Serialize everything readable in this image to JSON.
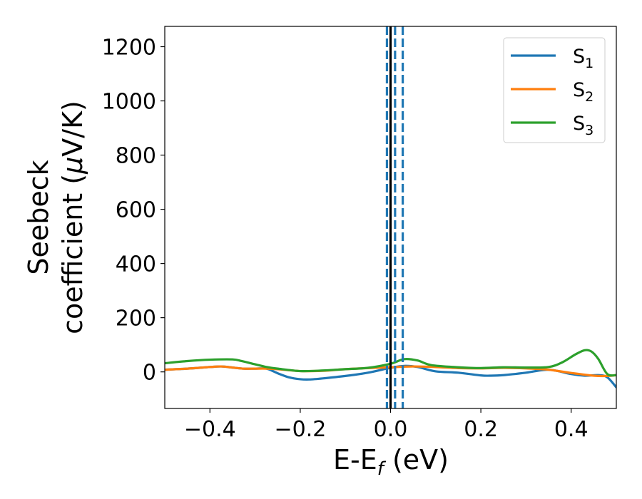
{
  "chart_data": {
    "type": "line",
    "xlabel": {
      "main": "E-E",
      "sub": "f",
      "post": " (eV)"
    },
    "ylabel": {
      "line1": "Seebeck",
      "line2_pre": "coefficient  (",
      "line2_mu": "μ",
      "line2_post": "V/K)"
    },
    "xlim": [
      -0.5,
      0.5
    ],
    "ylim": [
      -135,
      1275
    ],
    "x_ticks": [
      -0.4,
      -0.2,
      0.0,
      0.2,
      0.4
    ],
    "x_tick_labels": [
      "−0.4",
      "−0.2",
      "0.0",
      "0.2",
      "0.4"
    ],
    "y_ticks": [
      0,
      200,
      400,
      600,
      800,
      1000,
      1200
    ],
    "y_tick_labels": [
      "0",
      "200",
      "400",
      "600",
      "800",
      "1000",
      "1200"
    ],
    "grid": false,
    "legend_position": "top-right",
    "series": [
      {
        "name": "S",
        "sub": "1",
        "color": "#1f77b4",
        "points": [
          [
            -0.5,
            8
          ],
          [
            -0.45,
            12
          ],
          [
            -0.4,
            18
          ],
          [
            -0.375,
            20
          ],
          [
            -0.35,
            16
          ],
          [
            -0.325,
            12
          ],
          [
            -0.3,
            12
          ],
          [
            -0.275,
            12
          ],
          [
            -0.25,
            -5
          ],
          [
            -0.225,
            -20
          ],
          [
            -0.2,
            -27
          ],
          [
            -0.18,
            -28
          ],
          [
            -0.15,
            -24
          ],
          [
            -0.1,
            -15
          ],
          [
            -0.05,
            -3
          ],
          [
            0.0,
            15
          ],
          [
            0.03,
            22
          ],
          [
            0.06,
            18
          ],
          [
            0.1,
            2
          ],
          [
            0.15,
            -3
          ],
          [
            0.2,
            -13
          ],
          [
            0.22,
            -14
          ],
          [
            0.25,
            -12
          ],
          [
            0.3,
            -3
          ],
          [
            0.35,
            8
          ],
          [
            0.4,
            -8
          ],
          [
            0.43,
            -14
          ],
          [
            0.46,
            -12
          ],
          [
            0.48,
            -20
          ],
          [
            0.5,
            -57
          ]
        ]
      },
      {
        "name": "S",
        "sub": "2",
        "color": "#ff7f0e",
        "points": [
          [
            -0.5,
            8
          ],
          [
            -0.45,
            12
          ],
          [
            -0.4,
            18
          ],
          [
            -0.375,
            20
          ],
          [
            -0.35,
            16
          ],
          [
            -0.325,
            12
          ],
          [
            -0.3,
            12
          ],
          [
            -0.275,
            12
          ],
          [
            -0.25,
            10
          ],
          [
            -0.2,
            3
          ],
          [
            -0.15,
            4
          ],
          [
            -0.1,
            10
          ],
          [
            -0.05,
            14
          ],
          [
            0.0,
            17
          ],
          [
            0.05,
            20
          ],
          [
            0.1,
            18
          ],
          [
            0.15,
            14
          ],
          [
            0.2,
            13
          ],
          [
            0.25,
            15
          ],
          [
            0.3,
            13
          ],
          [
            0.35,
            8
          ],
          [
            0.4,
            -4
          ],
          [
            0.45,
            -14
          ],
          [
            0.48,
            -15
          ],
          [
            0.5,
            -12
          ]
        ]
      },
      {
        "name": "S",
        "sub": "3",
        "color": "#2ca02c",
        "points": [
          [
            -0.5,
            32
          ],
          [
            -0.45,
            40
          ],
          [
            -0.4,
            45
          ],
          [
            -0.35,
            46
          ],
          [
            -0.33,
            40
          ],
          [
            -0.3,
            28
          ],
          [
            -0.275,
            18
          ],
          [
            -0.25,
            12
          ],
          [
            -0.2,
            3
          ],
          [
            -0.15,
            5
          ],
          [
            -0.1,
            10
          ],
          [
            -0.05,
            15
          ],
          [
            0.0,
            30
          ],
          [
            0.03,
            47
          ],
          [
            0.06,
            42
          ],
          [
            0.09,
            25
          ],
          [
            0.15,
            17
          ],
          [
            0.2,
            14
          ],
          [
            0.25,
            17
          ],
          [
            0.3,
            16
          ],
          [
            0.35,
            18
          ],
          [
            0.38,
            35
          ],
          [
            0.41,
            65
          ],
          [
            0.43,
            80
          ],
          [
            0.445,
            75
          ],
          [
            0.46,
            48
          ],
          [
            0.48,
            -8
          ],
          [
            0.5,
            -12
          ]
        ]
      }
    ],
    "vlines": [
      {
        "x": -0.008,
        "color": "#1f77b4",
        "style": "dashed"
      },
      {
        "x": 0.0,
        "color": "#000000",
        "style": "solid"
      },
      {
        "x": 0.01,
        "color": "#1f77b4",
        "style": "dashed"
      },
      {
        "x": 0.027,
        "color": "#1f77b4",
        "style": "dashed"
      }
    ]
  }
}
